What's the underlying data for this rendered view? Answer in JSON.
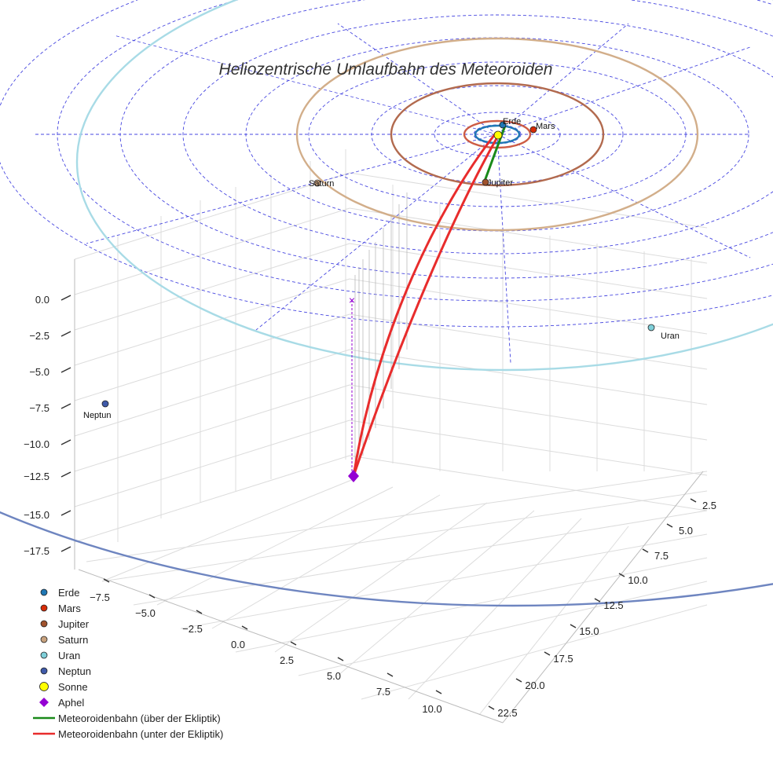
{
  "chart_data": {
    "type": "scatter",
    "title": "Heliozentrische Umlaufbahn des Meteoroiden",
    "axes": {
      "x_ticks": [
        "−7.5",
        "−5.0",
        "−2.5",
        "0.0",
        "2.5",
        "5.0",
        "7.5",
        "10.0"
      ],
      "y_ticks": [
        "2.5",
        "5.0",
        "7.5",
        "10.0",
        "12.5",
        "15.0",
        "17.5",
        "20.0",
        "22.5"
      ],
      "z_ticks": [
        "0.0",
        "−2.5",
        "−5.0",
        "−7.5",
        "−10.0",
        "−12.5",
        "−15.0",
        "−17.5"
      ],
      "grid": true
    },
    "planets": [
      {
        "name": "Erde",
        "color": "#1f77b4",
        "orbit_color": "#1f77b4"
      },
      {
        "name": "Mars",
        "color": "#d62c08",
        "orbit_color": "#cd5c45"
      },
      {
        "name": "Jupiter",
        "color": "#a0522d",
        "orbit_color": "#b26a4e"
      },
      {
        "name": "Saturn",
        "color": "#c8a27e",
        "orbit_color": "#d2ae8a"
      },
      {
        "name": "Uran",
        "color": "#7fcfd9",
        "orbit_color": "#a8dbe6"
      },
      {
        "name": "Neptun",
        "color": "#3f5aa9",
        "orbit_color": "#6e85c0"
      }
    ],
    "markers": {
      "sun": {
        "name": "Sonne",
        "color": "#ffff00"
      },
      "aphel": {
        "name": "Aphel",
        "color": "#9400d3"
      },
      "projection_marker": "×"
    },
    "series": [
      {
        "name": "Meteoroidenbahn (über der Ekliptik)",
        "color": "#1a8a1a"
      },
      {
        "name": "Meteoroidenbahn (unter der Ekliptik)",
        "color": "#e82c2c"
      }
    ],
    "legend_position": "bottom-left"
  }
}
